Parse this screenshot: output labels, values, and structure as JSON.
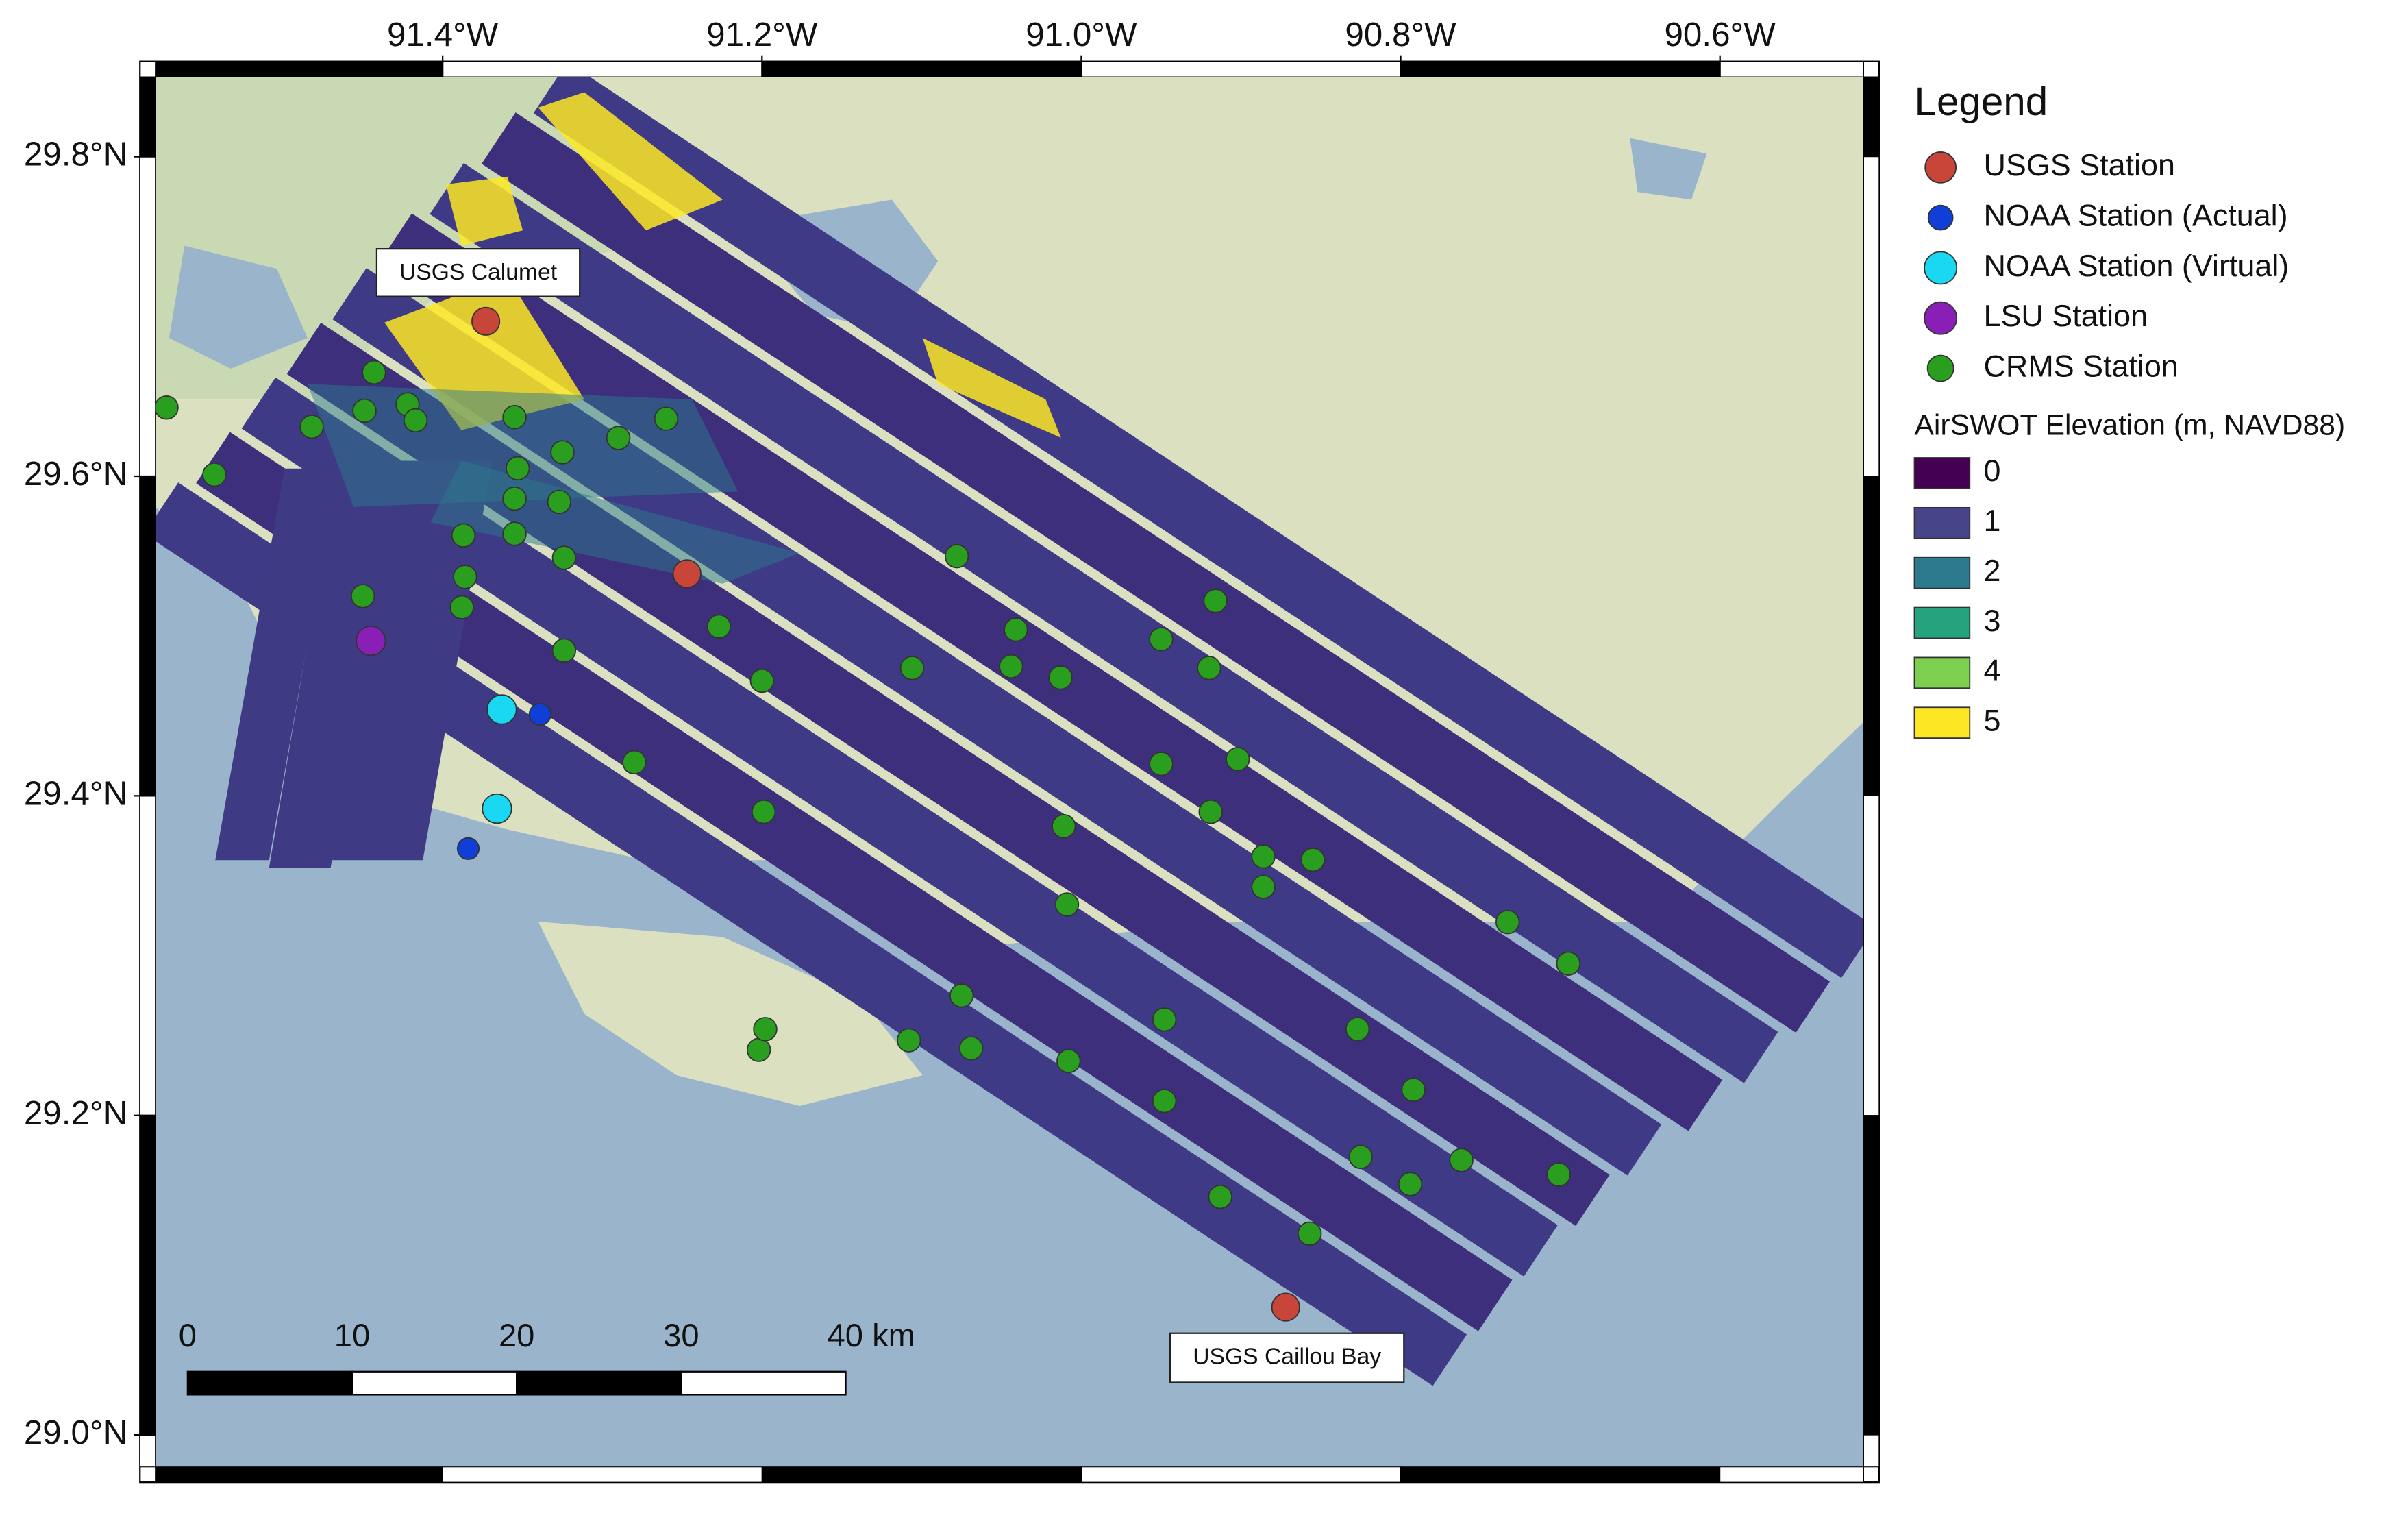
{
  "map": {
    "type": "map",
    "xlim": [
      -91.58,
      -90.51
    ],
    "ylim": [
      28.98,
      29.85
    ],
    "xticks": [
      {
        "value": -91.4,
        "label": "91.4°W"
      },
      {
        "value": -91.2,
        "label": "91.2°W"
      },
      {
        "value": -91.0,
        "label": "91.0°W"
      },
      {
        "value": -90.8,
        "label": "90.8°W"
      },
      {
        "value": -90.6,
        "label": "90.6°W"
      }
    ],
    "yticks": [
      {
        "value": 29.8,
        "label": "29.8°N"
      },
      {
        "value": 29.6,
        "label": "29.6°N"
      },
      {
        "value": 29.4,
        "label": "29.4°N"
      },
      {
        "value": 29.2,
        "label": "29.2°N"
      },
      {
        "value": 29.0,
        "label": "29.0°N"
      }
    ],
    "legend_title": "Legend",
    "stations": [
      {
        "name": "USGS Station",
        "color": "#c8453a",
        "lon": [
          -91.373,
          -91.247,
          -90.872
        ],
        "lat": [
          29.697,
          29.539,
          29.08
        ]
      },
      {
        "name": "NOAA Station (Actual)",
        "color": "#0f3fd6",
        "lon": [
          -91.339,
          -91.384
        ],
        "lat": [
          29.451,
          29.367
        ]
      },
      {
        "name": "NOAA Station (Virtual)",
        "color": "#1ad8f2",
        "lon": [
          -91.363,
          -91.366
        ],
        "lat": [
          29.454,
          29.392
        ]
      },
      {
        "name": "LSU Station",
        "color": "#8a1fb8",
        "lon": [
          -91.445
        ],
        "lat": [
          29.497
        ]
      },
      {
        "name": "CRMS Station",
        "color": "#2a9e1e",
        "lon": [
          -91.573,
          -91.543,
          -91.482,
          -91.449,
          -91.443,
          -91.422,
          -91.417,
          -91.45,
          -91.387,
          -91.386,
          -91.388,
          -91.355,
          -91.353,
          -91.355,
          -91.355,
          -91.325,
          -91.327,
          -91.324,
          -91.324,
          -91.29,
          -91.26,
          -91.227,
          -91.2,
          -91.28,
          -91.199,
          -91.202,
          -91.198,
          -91.108,
          -91.106,
          -91.078,
          -91.075,
          -91.069,
          -91.041,
          -91.044,
          -91.013,
          -91.011,
          -91.009,
          -91.008,
          -90.95,
          -90.95,
          -90.919,
          -90.916,
          -90.92,
          -90.902,
          -90.886,
          -90.886,
          -90.855,
          -90.948,
          -90.948,
          -90.913,
          -90.857,
          -90.827,
          -90.825,
          -90.794,
          -90.792,
          -90.762,
          -90.733,
          -90.695,
          -90.701
        ],
        "lat": [
          29.643,
          29.601,
          29.631,
          29.641,
          29.665,
          29.645,
          29.635,
          29.525,
          29.563,
          29.537,
          29.518,
          29.637,
          29.605,
          29.586,
          29.564,
          29.615,
          29.584,
          29.549,
          29.491,
          29.624,
          29.636,
          29.506,
          29.472,
          29.421,
          29.39,
          29.241,
          29.254,
          29.247,
          29.48,
          29.55,
          29.275,
          29.242,
          29.504,
          29.481,
          29.474,
          29.381,
          29.332,
          29.234,
          29.498,
          29.42,
          29.39,
          29.522,
          29.48,
          29.423,
          29.362,
          29.343,
          29.36,
          29.26,
          29.209,
          29.149,
          29.126,
          29.254,
          29.174,
          29.157,
          29.216,
          29.172,
          29.321,
          29.295,
          29.163
        ]
      }
    ],
    "colorbar": {
      "title": "AirSWOT Elevation (m, NAVD88)",
      "ticks": [
        0,
        1,
        2,
        3,
        4,
        5
      ],
      "colors": [
        "#440154",
        "#46458a",
        "#2b7a8e",
        "#25a37f",
        "#7ccf4f",
        "#fde725"
      ]
    },
    "scale_bar": {
      "ticks": [
        0,
        10,
        20,
        30,
        {
          "value": 40,
          "label": "40 km"
        }
      ]
    },
    "annotations": [
      "USGS Calumet",
      "USGS Caillou Bay"
    ]
  }
}
